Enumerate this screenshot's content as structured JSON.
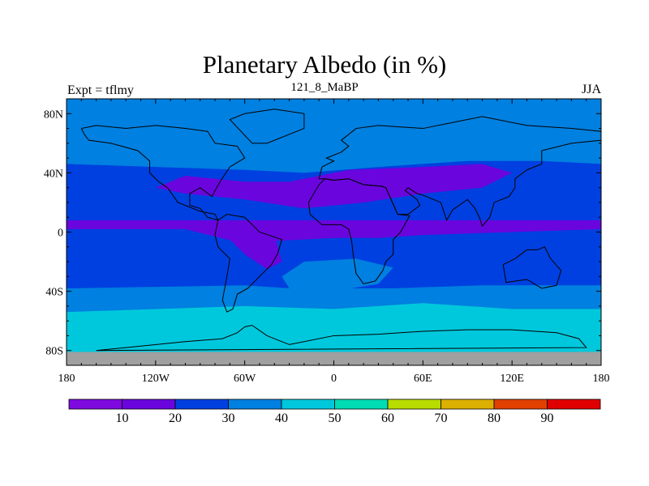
{
  "chart_data": {
    "type": "contour-map",
    "title": "Planetary Albedo (in %)",
    "left_string": "Expt = tflmy",
    "center_string": "121_8_MaBP",
    "right_string": "JJA",
    "lon_range": [
      -180,
      180
    ],
    "lat_range": [
      -90,
      90
    ],
    "x_ticks": [
      {
        "lon": -180,
        "label": "180"
      },
      {
        "lon": -120,
        "label": "120W"
      },
      {
        "lon": -60,
        "label": "60W"
      },
      {
        "lon": 0,
        "label": "0"
      },
      {
        "lon": 60,
        "label": "60E"
      },
      {
        "lon": 120,
        "label": "120E"
      },
      {
        "lon": 180,
        "label": "180"
      }
    ],
    "y_ticks": [
      {
        "lat": 80,
        "label": "80N"
      },
      {
        "lat": 40,
        "label": "40N"
      },
      {
        "lat": 0,
        "label": "0"
      },
      {
        "lat": -40,
        "label": "40S"
      },
      {
        "lat": -80,
        "label": "80S"
      }
    ],
    "levels": [
      10,
      20,
      30,
      40,
      50,
      60,
      70,
      80,
      90
    ],
    "level_labels": [
      "10",
      "20",
      "30",
      "40",
      "50",
      "60",
      "70",
      "80",
      "90"
    ],
    "colors": [
      "#7f0adf",
      "#6a05de",
      "#0040e0",
      "#0080e0",
      "#00c8dc",
      "#00dcb4",
      "#b8dc00",
      "#dcb000",
      "#e04000",
      "#e00000"
    ],
    "missing_color": "#a0a0a0",
    "regions": [
      {
        "bin": 3,
        "poly": [
          [
            -180,
            90
          ],
          [
            180,
            90
          ],
          [
            180,
            -90
          ],
          [
            -180,
            -90
          ]
        ]
      },
      {
        "bin": 2,
        "poly": [
          [
            -180,
            46
          ],
          [
            -120,
            44
          ],
          [
            -60,
            42
          ],
          [
            -20,
            40
          ],
          [
            30,
            44
          ],
          [
            90,
            48
          ],
          [
            140,
            48
          ],
          [
            180,
            46
          ],
          [
            180,
            -38
          ],
          [
            -180,
            -38
          ]
        ]
      },
      {
        "bin": 1,
        "poly": [
          [
            -120,
            30
          ],
          [
            -100,
            38
          ],
          [
            -60,
            34
          ],
          [
            -30,
            34
          ],
          [
            10,
            42
          ],
          [
            60,
            44
          ],
          [
            100,
            46
          ],
          [
            120,
            40
          ],
          [
            100,
            30
          ],
          [
            60,
            26
          ],
          [
            20,
            20
          ],
          [
            -20,
            16
          ],
          [
            -60,
            22
          ],
          [
            -100,
            26
          ]
        ]
      },
      {
        "bin": 1,
        "poly": [
          [
            -180,
            8
          ],
          [
            180,
            8
          ],
          [
            180,
            2
          ],
          [
            60,
            -2
          ],
          [
            30,
            -4
          ],
          [
            0,
            -4
          ],
          [
            -40,
            -6
          ],
          [
            -60,
            -8
          ],
          [
            -100,
            2
          ],
          [
            -180,
            2
          ]
        ]
      },
      {
        "bin": 1,
        "poly": [
          [
            -55,
            0
          ],
          [
            -40,
            -2
          ],
          [
            -35,
            -20
          ],
          [
            -45,
            -25
          ],
          [
            -60,
            -15
          ],
          [
            -70,
            -5
          ]
        ]
      },
      {
        "bin": 3,
        "poly": [
          [
            -180,
            -38
          ],
          [
            -60,
            -36
          ],
          [
            0,
            -40
          ],
          [
            40,
            -38
          ],
          [
            100,
            -36
          ],
          [
            180,
            -36
          ],
          [
            180,
            -52
          ],
          [
            -180,
            -52
          ]
        ]
      },
      {
        "bin": 3,
        "poly": [
          [
            -35,
            -30
          ],
          [
            -20,
            -20
          ],
          [
            15,
            -18
          ],
          [
            40,
            -24
          ],
          [
            30,
            -35
          ],
          [
            0,
            -40
          ],
          [
            -30,
            -38
          ]
        ]
      },
      {
        "bin": 4,
        "poly": [
          [
            -180,
            -54
          ],
          [
            -60,
            -50
          ],
          [
            0,
            -52
          ],
          [
            60,
            -48
          ],
          [
            120,
            -52
          ],
          [
            180,
            -52
          ],
          [
            180,
            -81
          ],
          [
            -180,
            -81
          ]
        ]
      },
      {
        "bin": -1,
        "poly": [
          [
            -180,
            -81
          ],
          [
            180,
            -81
          ],
          [
            180,
            -90
          ],
          [
            -180,
            -90
          ]
        ]
      }
    ],
    "coastlines": [
      [
        [
          -170,
          70
        ],
        [
          -160,
          72
        ],
        [
          -140,
          70
        ],
        [
          -120,
          72
        ],
        [
          -100,
          70
        ],
        [
          -85,
          68
        ],
        [
          -80,
          60
        ],
        [
          -65,
          58
        ],
        [
          -60,
          50
        ],
        [
          -70,
          44
        ],
        [
          -76,
          35
        ],
        [
          -80,
          28
        ],
        [
          -82,
          24
        ],
        [
          -90,
          30
        ],
        [
          -97,
          26
        ],
        [
          -97,
          18
        ],
        [
          -90,
          16
        ],
        [
          -85,
          10
        ],
        [
          -78,
          8
        ],
        [
          -80,
          12
        ],
        [
          -90,
          14
        ],
        [
          -105,
          20
        ],
        [
          -112,
          30
        ],
        [
          -118,
          34
        ],
        [
          -124,
          40
        ],
        [
          -124,
          48
        ],
        [
          -132,
          55
        ],
        [
          -150,
          60
        ],
        [
          -165,
          62
        ],
        [
          -168,
          66
        ],
        [
          -170,
          70
        ]
      ],
      [
        [
          -78,
          8
        ],
        [
          -72,
          12
        ],
        [
          -60,
          10
        ],
        [
          -50,
          0
        ],
        [
          -35,
          -5
        ],
        [
          -38,
          -15
        ],
        [
          -42,
          -22
        ],
        [
          -48,
          -28
        ],
        [
          -58,
          -38
        ],
        [
          -65,
          -42
        ],
        [
          -68,
          -52
        ],
        [
          -72,
          -54
        ],
        [
          -75,
          -46
        ],
        [
          -72,
          -30
        ],
        [
          -70,
          -18
        ],
        [
          -78,
          -10
        ],
        [
          -80,
          -2
        ],
        [
          -78,
          8
        ]
      ],
      [
        [
          -10,
          36
        ],
        [
          -8,
          44
        ],
        [
          0,
          48
        ],
        [
          -5,
          50
        ],
        [
          5,
          54
        ],
        [
          10,
          58
        ],
        [
          5,
          62
        ],
        [
          15,
          70
        ],
        [
          30,
          72
        ],
        [
          60,
          70
        ],
        [
          80,
          74
        ],
        [
          100,
          78
        ],
        [
          130,
          72
        ],
        [
          160,
          70
        ],
        [
          180,
          68
        ],
        [
          180,
          62
        ],
        [
          160,
          60
        ],
        [
          140,
          55
        ],
        [
          140,
          46
        ],
        [
          130,
          42
        ],
        [
          122,
          36
        ],
        [
          122,
          30
        ],
        [
          118,
          24
        ],
        [
          108,
          20
        ],
        [
          105,
          10
        ],
        [
          100,
          4
        ],
        [
          98,
          10
        ],
        [
          95,
          16
        ],
        [
          90,
          22
        ],
        [
          80,
          15
        ],
        [
          76,
          8
        ],
        [
          72,
          20
        ],
        [
          60,
          25
        ],
        [
          56,
          26
        ],
        [
          50,
          30
        ],
        [
          48,
          28
        ],
        [
          56,
          22
        ],
        [
          58,
          18
        ],
        [
          50,
          12
        ],
        [
          43,
          12
        ],
        [
          35,
          30
        ],
        [
          32,
          31
        ],
        [
          20,
          32
        ],
        [
          10,
          36
        ],
        [
          0,
          35
        ],
        [
          -6,
          36
        ],
        [
          -10,
          36
        ]
      ],
      [
        [
          -17,
          20
        ],
        [
          -16,
          12
        ],
        [
          -8,
          5
        ],
        [
          5,
          5
        ],
        [
          10,
          2
        ],
        [
          12,
          -6
        ],
        [
          13,
          -15
        ],
        [
          15,
          -28
        ],
        [
          20,
          -35
        ],
        [
          28,
          -33
        ],
        [
          33,
          -26
        ],
        [
          35,
          -20
        ],
        [
          40,
          -15
        ],
        [
          40,
          -5
        ],
        [
          45,
          0
        ],
        [
          51,
          11
        ],
        [
          43,
          12
        ],
        [
          35,
          30
        ],
        [
          32,
          31
        ],
        [
          20,
          32
        ],
        [
          10,
          36
        ],
        [
          0,
          35
        ],
        [
          -6,
          36
        ],
        [
          -10,
          32
        ],
        [
          -17,
          20
        ]
      ],
      [
        [
          114,
          -22
        ],
        [
          122,
          -18
        ],
        [
          130,
          -12
        ],
        [
          137,
          -12
        ],
        [
          142,
          -10
        ],
        [
          146,
          -18
        ],
        [
          153,
          -26
        ],
        [
          150,
          -36
        ],
        [
          140,
          -38
        ],
        [
          130,
          -32
        ],
        [
          116,
          -34
        ],
        [
          114,
          -22
        ]
      ],
      [
        [
          -60,
          -64
        ],
        [
          -55,
          -63
        ],
        [
          -45,
          -70
        ],
        [
          -30,
          -76
        ],
        [
          0,
          -70
        ],
        [
          30,
          -69
        ],
        [
          60,
          -67
        ],
        [
          90,
          -66
        ],
        [
          120,
          -66
        ],
        [
          150,
          -68
        ],
        [
          165,
          -72
        ],
        [
          170,
          -78
        ],
        [
          -160,
          -80
        ],
        [
          -140,
          -78
        ],
        [
          -100,
          -74
        ],
        [
          -75,
          -72
        ],
        [
          -65,
          -68
        ],
        [
          -60,
          -64
        ]
      ],
      [
        [
          -55,
          60
        ],
        [
          -45,
          60
        ],
        [
          -20,
          70
        ],
        [
          -20,
          80
        ],
        [
          -40,
          83
        ],
        [
          -60,
          80
        ],
        [
          -70,
          76
        ],
        [
          -55,
          60
        ]
      ]
    ]
  }
}
